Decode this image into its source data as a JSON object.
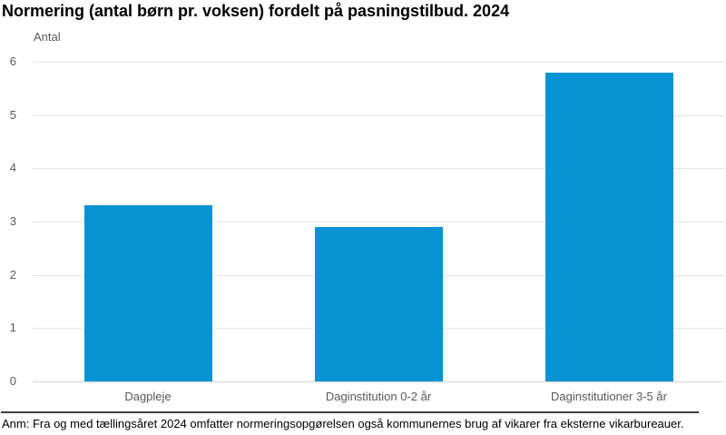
{
  "chart": {
    "title": "Normering (antal børn pr. voksen) fordelt på pasningstilbud. 2024",
    "y_unit_label": "Antal",
    "note": "Anm: Fra og med tællingsåret 2024 omfatter normeringsopgørelsen også kommunernes brug af vikarer fra eksterne vikarbureauer."
  },
  "chart_data": {
    "type": "bar",
    "categories": [
      "Dagpleje",
      "Daginstitution 0-2 år",
      "Daginstitutioner 3-5 år"
    ],
    "values": [
      3.3,
      2.9,
      5.8
    ],
    "title": "Normering (antal børn pr. voksen) fordelt på pasningstilbud. 2024",
    "xlabel": "",
    "ylabel": "Antal",
    "ylim": [
      0,
      6
    ],
    "yticks": [
      0,
      1,
      2,
      3,
      4,
      5,
      6
    ],
    "grid": true,
    "legend_position": "none",
    "bar_color": "#0993d4"
  },
  "colors": {
    "bar": "#0993d4",
    "gridline": "#e5e4df",
    "baseline": "#d7d6d1",
    "axis_text": "#595959",
    "title_text": "#000000",
    "divider": "#3e3e3e"
  }
}
